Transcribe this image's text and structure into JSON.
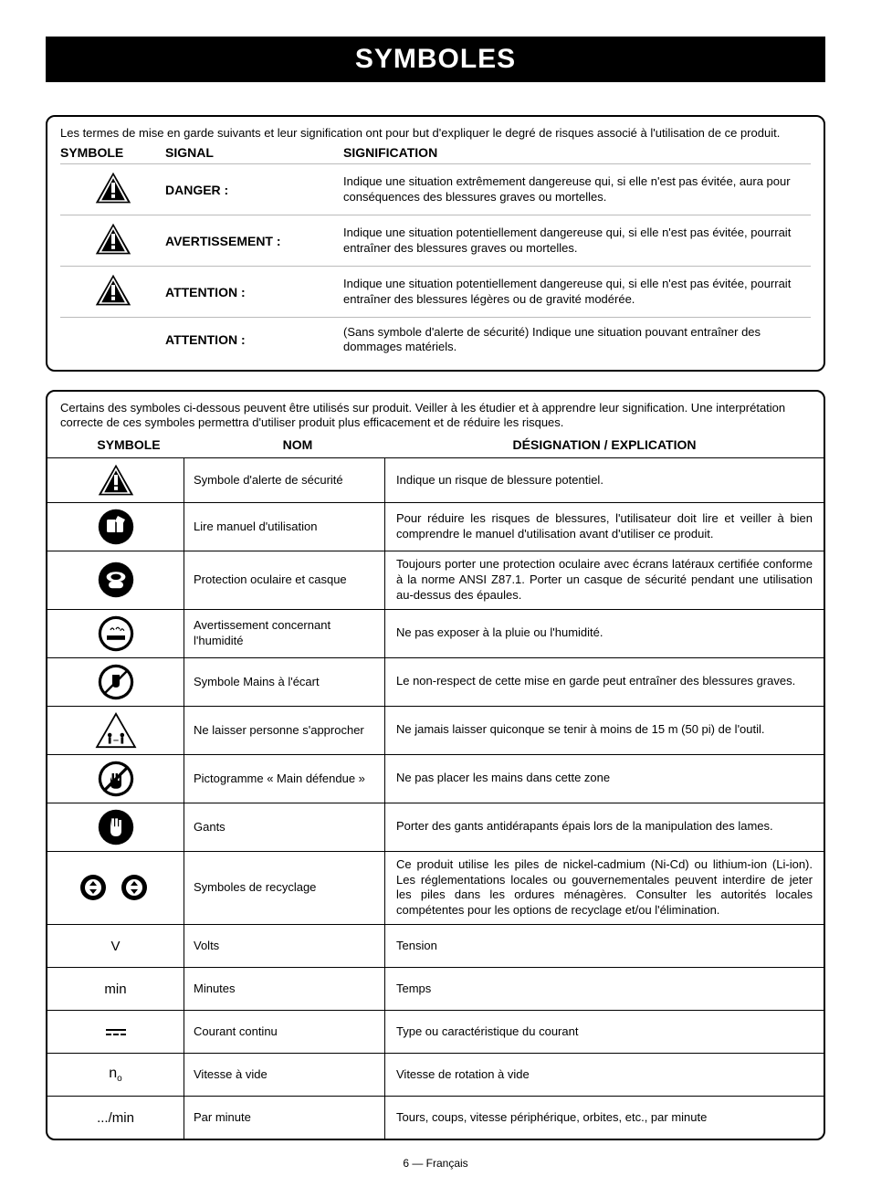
{
  "title": "SYMBOLES",
  "footer": "6 — Français",
  "box1": {
    "intro": "Les termes de mise en garde suivants et leur signification ont pour but d'expliquer le degré de risques associé à l'utilisation de ce produit.",
    "headers": {
      "symbole": "SYMBOLE",
      "signal": "SIGNAL",
      "signification": "SIGNIFICATION"
    },
    "rows": [
      {
        "icon": "alert",
        "signal": "DANGER :",
        "meaning": "Indique une situation extrêmement dangereuse qui, si elle n'est pas évitée, aura pour conséquences des blessures graves ou mortelles."
      },
      {
        "icon": "alert",
        "signal": "AVERTISSEMENT :",
        "meaning": "Indique une situation potentiellement dangereuse qui, si elle n'est pas évitée, pourrait entraîner des blessures graves ou mortelles."
      },
      {
        "icon": "alert",
        "signal": "ATTENTION :",
        "meaning": "Indique une situation potentiellement dangereuse qui, si elle n'est pas évitée, pourrait entraîner des blessures légères ou de gravité modérée."
      },
      {
        "icon": "",
        "signal": "ATTENTION :",
        "meaning": "(Sans symbole d'alerte de sécurité) Indique une situation pouvant entraîner des dommages matériels."
      }
    ]
  },
  "box2": {
    "intro": "Certains des symboles ci-dessous peuvent être utilisés sur produit. Veiller à les étudier et à apprendre leur signification. Une interprétation correcte de ces symboles permettra d'utiliser produit plus efficacement et de réduire les risques.",
    "headers": {
      "symbole": "SYMBOLE",
      "nom": "NOM",
      "designation": "DÉSIGNATION / EXPLICATION"
    },
    "rows": [
      {
        "icon": "alert-tri",
        "nom": "Symbole d'alerte de sécurité",
        "des": "Indique un risque de blessure potentiel."
      },
      {
        "icon": "read-manual",
        "nom": "Lire manuel d'utilisation",
        "des": "Pour réduire les risques de blessures, l'utilisateur doit lire et veiller à bien comprendre le manuel d'utilisation avant d'utiliser ce produit."
      },
      {
        "icon": "eye-helmet",
        "nom": "Protection oculaire et casque",
        "des": "Toujours porter une protection oculaire avec écrans latéraux certifiée conforme à la norme ANSI Z87.1. Porter un casque de sécurité pendant une utilisation au-dessus des épaules."
      },
      {
        "icon": "wet",
        "nom": "Avertissement concernant l'humidité",
        "des": "Ne pas exposer à la pluie ou l'humidité."
      },
      {
        "icon": "hands-away",
        "nom": "Symbole Mains à l'écart",
        "des": "Le non-respect de cette mise en garde peut entraîner des blessures graves."
      },
      {
        "icon": "bystander",
        "nom": "Ne laisser personne s'approcher",
        "des": "Ne jamais laisser quiconque se tenir à moins de 15 m (50 pi) de l'outil."
      },
      {
        "icon": "no-hand",
        "nom": "Pictogramme « Main défendue »",
        "des": "Ne pas placer les mains dans cette zone"
      },
      {
        "icon": "gloves",
        "nom": "Gants",
        "des": "Porter des gants antidérapants épais lors de la manipulation des lames."
      },
      {
        "icon": "recycle",
        "nom": "Symboles de recyclage",
        "des": "Ce produit utilise les piles de nickel-cadmium (Ni-Cd) ou lithium-ion (Li-ion). Les réglementations locales ou gouvernementales peuvent interdire de jeter les piles dans les ordures ménagères. Consulter les autorités locales compétentes pour les options de recyclage et/ou l'élimination."
      },
      {
        "icon": "text:V",
        "nom": "Volts",
        "des": "Tension"
      },
      {
        "icon": "text:min",
        "nom": "Minutes",
        "des": "Temps"
      },
      {
        "icon": "dc",
        "nom": "Courant continu",
        "des": "Type ou caractéristique du courant"
      },
      {
        "icon": "n0",
        "nom": "Vitesse à vide",
        "des": "Vitesse de rotation à vide"
      },
      {
        "icon": "text:.../min",
        "nom": "Par minute",
        "des": "Tours, coups, vitesse périphérique, orbites, etc., par minute"
      }
    ]
  },
  "icons": {
    "alert_fill": "#000000",
    "alert_bang": "#ffffff"
  }
}
